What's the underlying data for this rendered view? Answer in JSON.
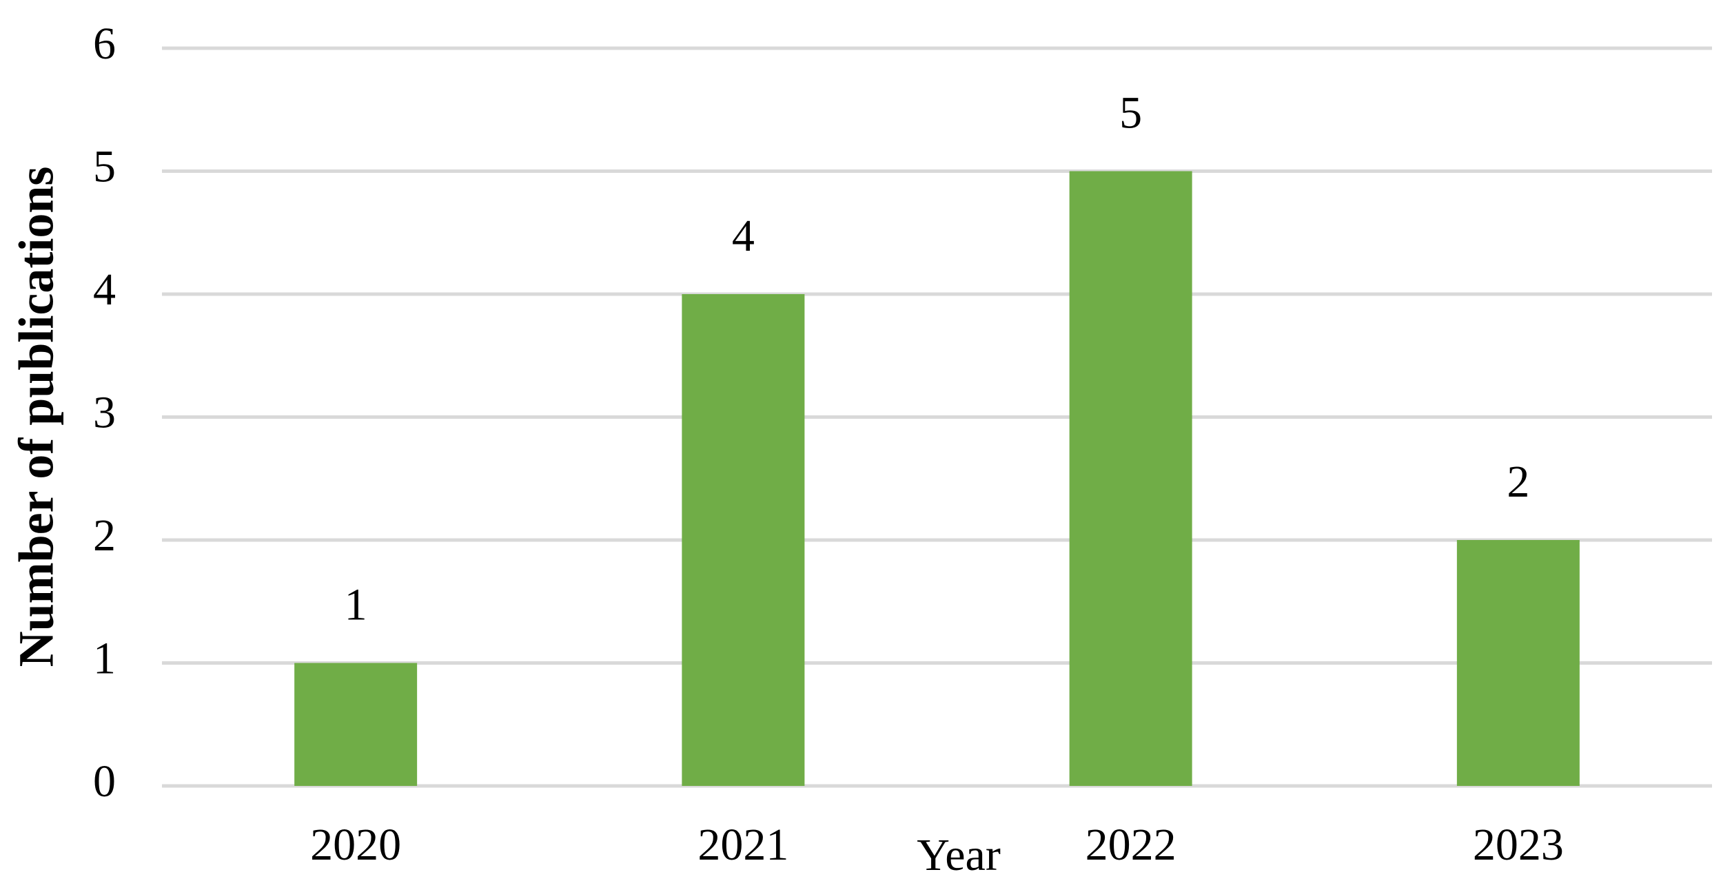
{
  "chart_data": {
    "type": "bar",
    "x_label": "Year",
    "y_label": "Number of publications",
    "categories": [
      "2020",
      "2021",
      "2022",
      "2023"
    ],
    "values": [
      1,
      4,
      5,
      2
    ],
    "color": "#70ad47",
    "ylim": [
      0,
      6
    ],
    "yticks": [
      0,
      1,
      2,
      3,
      4,
      5,
      6
    ],
    "grid": true,
    "data_labels": true
  }
}
